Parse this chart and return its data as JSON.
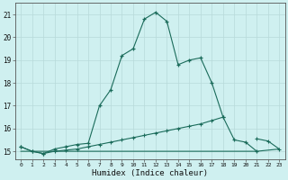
{
  "title": "",
  "xlabel": "Humidex (Indice chaleur)",
  "bg_color": "#cff0f0",
  "grid_color": "#b8dada",
  "line_color": "#1a6b5a",
  "x": [
    0,
    1,
    2,
    3,
    4,
    5,
    6,
    7,
    8,
    9,
    10,
    11,
    12,
    13,
    14,
    15,
    16,
    17,
    18,
    19,
    20,
    21,
    22,
    23
  ],
  "y_main": [
    15.2,
    15.0,
    14.9,
    15.1,
    15.2,
    15.3,
    15.35,
    17.0,
    17.7,
    19.2,
    19.5,
    20.8,
    21.1,
    20.7,
    18.8,
    19.0,
    19.1,
    18.0,
    16.5,
    15.5,
    15.4,
    15.0,
    null,
    null
  ],
  "y_mid": [
    15.2,
    15.0,
    14.9,
    15.0,
    15.05,
    15.1,
    15.2,
    15.3,
    15.4,
    15.5,
    15.6,
    15.7,
    15.8,
    15.9,
    16.0,
    16.1,
    16.2,
    16.35,
    16.5,
    null,
    null,
    null,
    null,
    null
  ],
  "y_flat": [
    15.0,
    15.0,
    15.0,
    15.0,
    15.0,
    15.0,
    15.0,
    15.0,
    15.0,
    15.0,
    15.0,
    15.0,
    15.0,
    15.0,
    15.0,
    15.0,
    15.0,
    15.0,
    15.0,
    15.0,
    15.0,
    15.0,
    15.05,
    15.1
  ],
  "y_upper_right": [
    null,
    null,
    null,
    null,
    null,
    null,
    null,
    null,
    null,
    null,
    null,
    null,
    null,
    null,
    null,
    null,
    null,
    null,
    null,
    null,
    null,
    15.55,
    15.45,
    15.1
  ],
  "ylim": [
    14.65,
    21.5
  ],
  "xlim": [
    -0.5,
    23.5
  ],
  "yticks": [
    15,
    16,
    17,
    18,
    19,
    20,
    21
  ],
  "xticks": [
    0,
    1,
    2,
    3,
    4,
    5,
    6,
    7,
    8,
    9,
    10,
    11,
    12,
    13,
    14,
    15,
    16,
    17,
    18,
    19,
    20,
    21,
    22,
    23
  ]
}
